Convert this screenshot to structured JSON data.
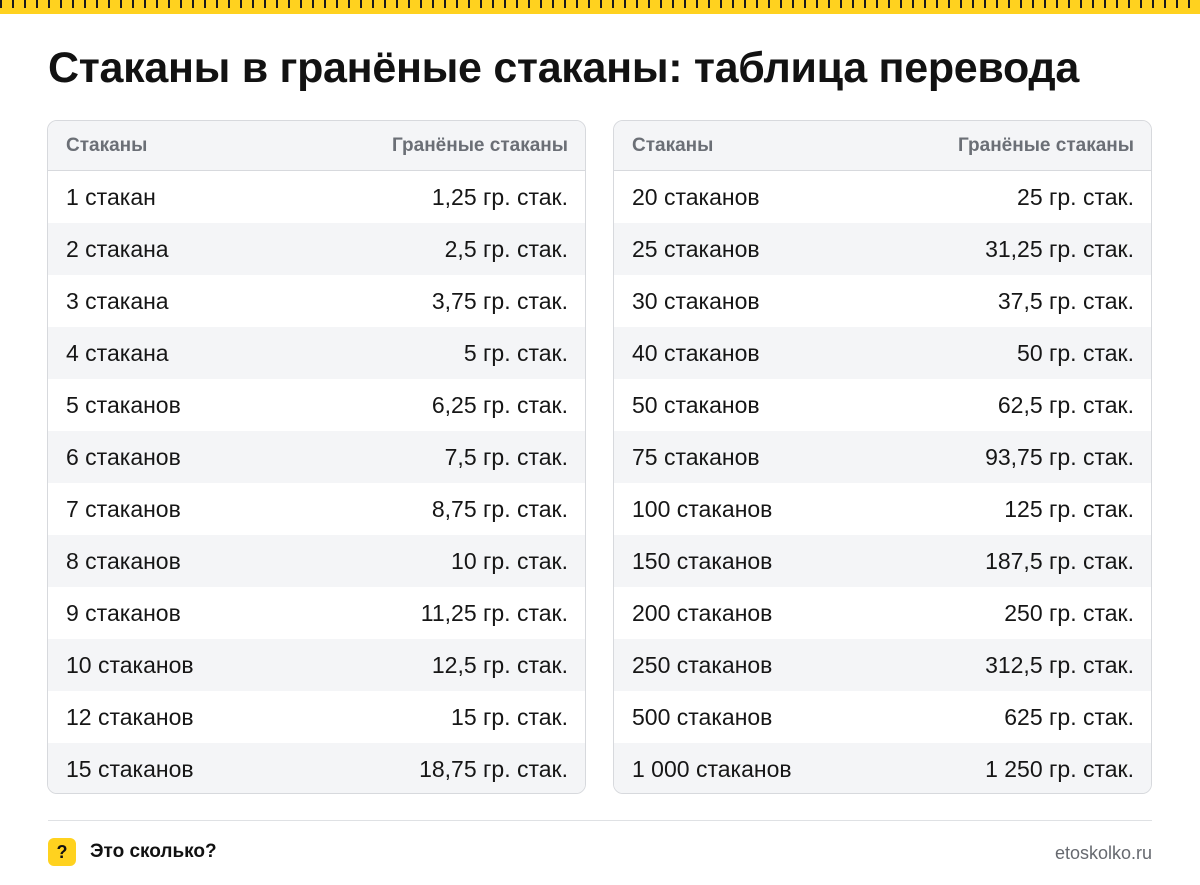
{
  "title": "Стаканы в гранёные стаканы: таблица перевода",
  "tables": [
    {
      "header": {
        "from": "Стаканы",
        "to": "Гранёные стаканы"
      },
      "rows": [
        {
          "from": "1 стакан",
          "to": "1,25 гр. стак."
        },
        {
          "from": "2 стакана",
          "to": "2,5 гр. стак."
        },
        {
          "from": "3 стакана",
          "to": "3,75 гр. стак."
        },
        {
          "from": "4 стакана",
          "to": "5 гр. стак."
        },
        {
          "from": "5 стаканов",
          "to": "6,25 гр. стак."
        },
        {
          "from": "6 стаканов",
          "to": "7,5 гр. стак."
        },
        {
          "from": "7 стаканов",
          "to": "8,75 гр. стак."
        },
        {
          "from": "8 стаканов",
          "to": "10 гр. стак."
        },
        {
          "from": "9 стаканов",
          "to": "11,25 гр. стак."
        },
        {
          "from": "10 стаканов",
          "to": "12,5 гр. стак."
        },
        {
          "from": "12 стаканов",
          "to": "15 гр. стак."
        },
        {
          "from": "15 стаканов",
          "to": "18,75 гр. стак."
        }
      ]
    },
    {
      "header": {
        "from": "Стаканы",
        "to": "Гранёные стаканы"
      },
      "rows": [
        {
          "from": "20 стаканов",
          "to": "25 гр. стак."
        },
        {
          "from": "25 стаканов",
          "to": "31,25 гр. стак."
        },
        {
          "from": "30 стаканов",
          "to": "37,5 гр. стак."
        },
        {
          "from": "40 стаканов",
          "to": "50 гр. стак."
        },
        {
          "from": "50 стаканов",
          "to": "62,5 гр. стак."
        },
        {
          "from": "75 стаканов",
          "to": "93,75 гр. стак."
        },
        {
          "from": "100 стаканов",
          "to": "125 гр. стак."
        },
        {
          "from": "150 стаканов",
          "to": "187,5 гр. стак."
        },
        {
          "from": "200 стаканов",
          "to": "250 гр. стак."
        },
        {
          "from": "250 стаканов",
          "to": "312,5 гр. стак."
        },
        {
          "from": "500 стаканов",
          "to": "625 гр. стак."
        },
        {
          "from": "1 000 стаканов",
          "to": "1 250 гр. стак."
        }
      ]
    }
  ],
  "footer": {
    "badge": "?",
    "brand": "Это сколько?",
    "site": "etoskolko.ru"
  },
  "colors": {
    "accent": "#FFD21F",
    "header_bg": "#f4f5f7",
    "header_text": "#6b6f76",
    "border": "#d7d9dd"
  }
}
